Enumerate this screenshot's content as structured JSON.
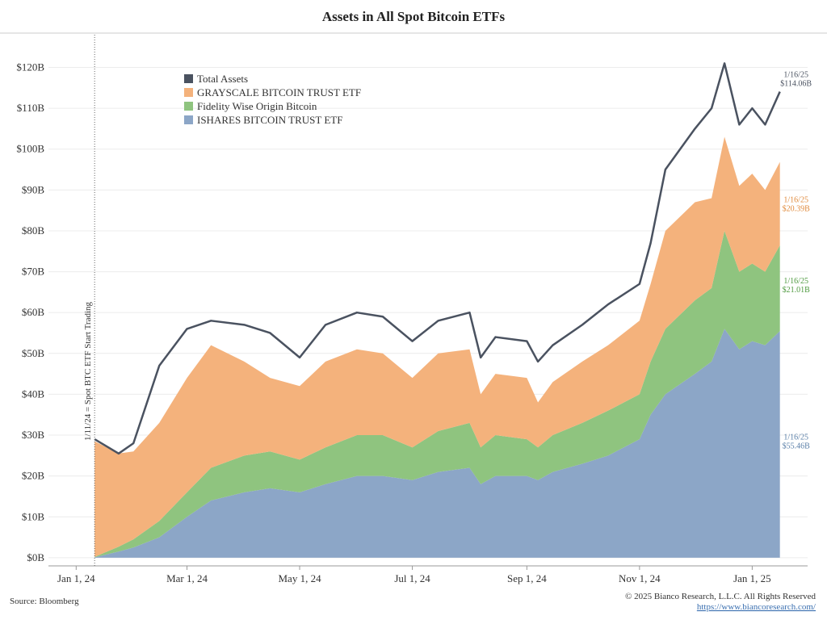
{
  "chart_data": {
    "type": "stacked_area",
    "title": "Assets in All Spot Bitcoin ETFs",
    "x": [
      "2024-01-11",
      "2024-01-24",
      "2024-02-01",
      "2024-02-15",
      "2024-03-01",
      "2024-03-14",
      "2024-04-01",
      "2024-04-15",
      "2024-05-01",
      "2024-05-15",
      "2024-06-01",
      "2024-06-15",
      "2024-07-01",
      "2024-07-15",
      "2024-08-01",
      "2024-08-07",
      "2024-08-15",
      "2024-09-01",
      "2024-09-07",
      "2024-09-15",
      "2024-10-01",
      "2024-10-15",
      "2024-11-01",
      "2024-11-07",
      "2024-11-15",
      "2024-12-01",
      "2024-12-10",
      "2024-12-17",
      "2024-12-25",
      "2025-01-01",
      "2025-01-08",
      "2025-01-16"
    ],
    "series": [
      {
        "name": "ISHARES BITCOIN TRUST ETF",
        "kind": "area",
        "color": "#8ca6c7",
        "label_color": "#5a7fa8",
        "values": [
          0.1,
          1.5,
          2.5,
          5,
          10,
          14,
          16,
          17,
          16,
          18,
          20,
          20,
          19,
          21,
          22,
          18,
          20,
          20,
          19,
          21,
          23,
          25,
          29,
          35,
          40,
          45,
          48,
          56,
          51,
          53,
          52,
          55.46
        ],
        "last_date_label": "1/16/25",
        "last_value_label": "$55.46B"
      },
      {
        "name": "Fidelity Wise Origin Bitcoin",
        "kind": "area",
        "color": "#8fc47f",
        "label_color": "#4e9a3f",
        "values": [
          0.1,
          1.2,
          2,
          4,
          6,
          8,
          9,
          9,
          8,
          9,
          10,
          10,
          8,
          10,
          11,
          9,
          10,
          9,
          8,
          9,
          10,
          11,
          11,
          13,
          16,
          18,
          18,
          24,
          19,
          19,
          18,
          21.01
        ],
        "last_date_label": "1/16/25",
        "last_value_label": "$21.01B"
      },
      {
        "name": "GRAYSCALE BITCOIN TRUST ETF",
        "kind": "area",
        "color": "#f4b27c",
        "label_color": "#e08a3c",
        "values": [
          28.3,
          22.8,
          21.5,
          24,
          28,
          30,
          23,
          18,
          18,
          21,
          21,
          20,
          17,
          19,
          18,
          13,
          15,
          15,
          11,
          13,
          15,
          16,
          18,
          19,
          24,
          24,
          22,
          23,
          21,
          22,
          20,
          20.39
        ],
        "last_date_label": "1/16/25",
        "last_value_label": "$20.39B"
      },
      {
        "name": "Total Assets",
        "kind": "line",
        "color": "#4a5260",
        "label_color": "#4a5260",
        "values": [
          29,
          25.5,
          28,
          47,
          56,
          58,
          57,
          55,
          49,
          57,
          60,
          59,
          53,
          58,
          60,
          49,
          54,
          53,
          48,
          52,
          57,
          62,
          67,
          77,
          95,
          105,
          110,
          121,
          106,
          110,
          106,
          114.06
        ],
        "last_date_label": "1/16/25",
        "last_value_label": "$114.06B"
      }
    ],
    "xlim": [
      "2023-12-17",
      "2025-01-31"
    ],
    "xticks": [
      {
        "value": "2024-01-01",
        "label": "Jan 1, 24"
      },
      {
        "value": "2024-03-01",
        "label": "Mar 1, 24"
      },
      {
        "value": "2024-05-01",
        "label": "May 1, 24"
      },
      {
        "value": "2024-07-01",
        "label": "Jul 1, 24"
      },
      {
        "value": "2024-09-01",
        "label": "Sep 1, 24"
      },
      {
        "value": "2024-11-01",
        "label": "Nov 1, 24"
      },
      {
        "value": "2025-01-01",
        "label": "Jan 1, 25"
      }
    ],
    "ylim": [
      -2,
      128
    ],
    "yticks": [
      {
        "value": 0,
        "label": "$0B"
      },
      {
        "value": 10,
        "label": "$10B"
      },
      {
        "value": 20,
        "label": "$20B"
      },
      {
        "value": 30,
        "label": "$30B"
      },
      {
        "value": 40,
        "label": "$40B"
      },
      {
        "value": 50,
        "label": "$50B"
      },
      {
        "value": 60,
        "label": "$60B"
      },
      {
        "value": 70,
        "label": "$70B"
      },
      {
        "value": 80,
        "label": "$80B"
      },
      {
        "value": 90,
        "label": "$90B"
      },
      {
        "value": 100,
        "label": "$100B"
      },
      {
        "value": 110,
        "label": "$110B"
      },
      {
        "value": 120,
        "label": "$120B"
      }
    ],
    "grid": true,
    "legend": "upper left",
    "annotation": {
      "x": "2024-01-11",
      "text": "1/11/24 = Spot BTC ETF Start Trading"
    },
    "source": "Source: Bloomberg",
    "copyright": "© 2025 Bianco Research, L.L.C. All Rights Reserved",
    "url": "https://www.biancoresearch.com/"
  }
}
